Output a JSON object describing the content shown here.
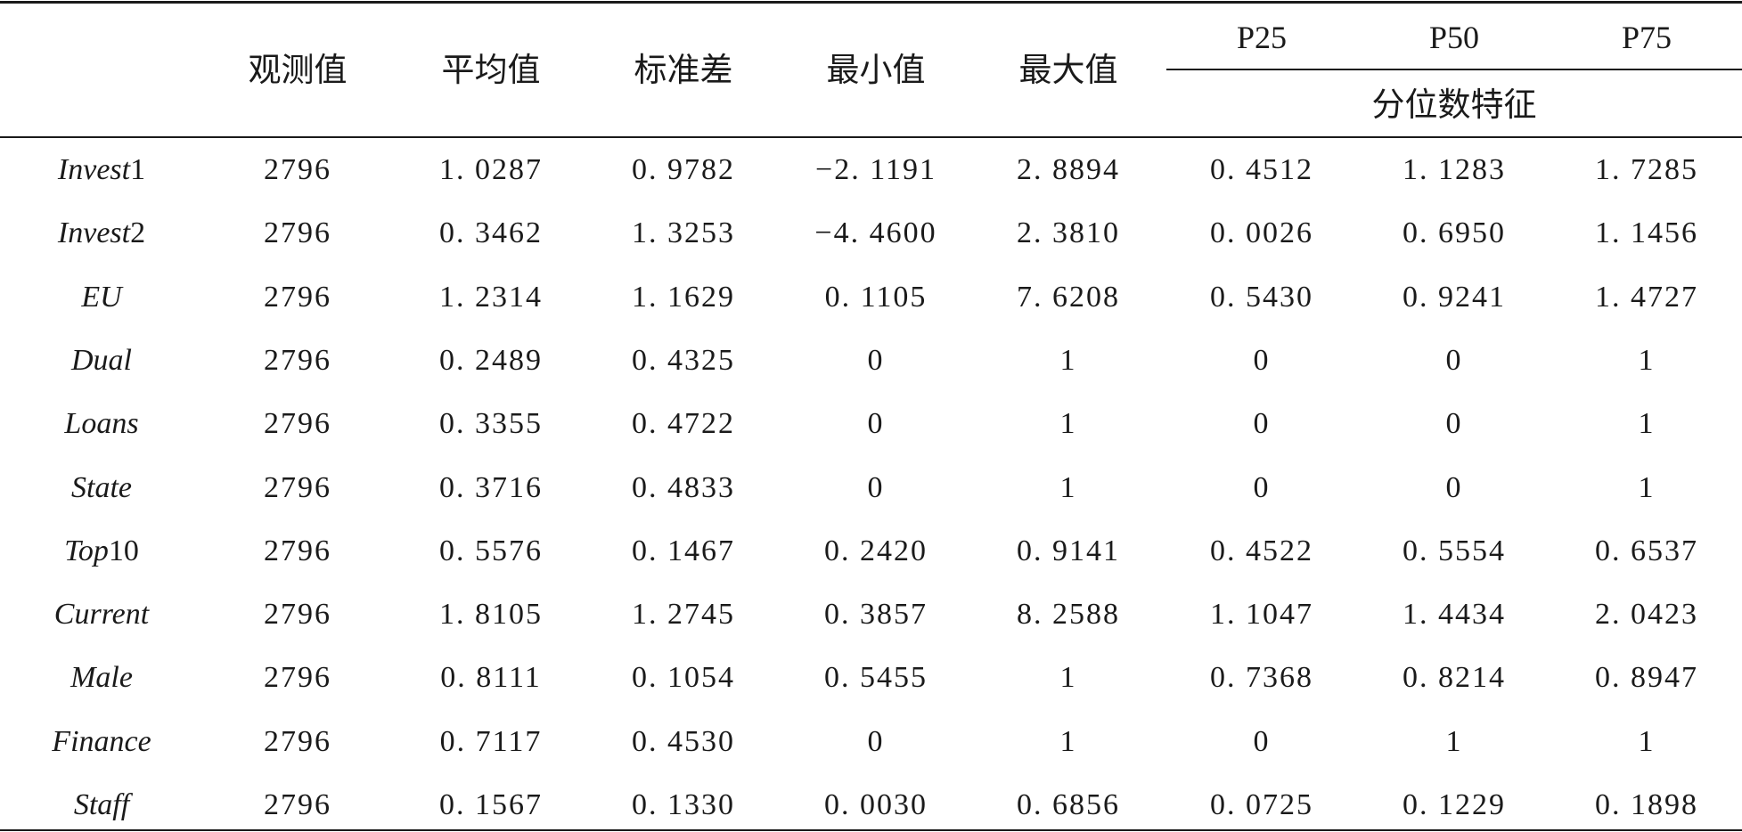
{
  "header": {
    "columns": [
      "观测值",
      "平均值",
      "标准差",
      "最小值",
      "最大值"
    ],
    "percentile_columns": [
      "P25",
      "P50",
      "P75"
    ],
    "percentile_group_label": "分位数特征"
  },
  "rows": [
    {
      "var": "Invest",
      "suffix": "1",
      "values": [
        "2796",
        "1. 0287",
        "0. 9782",
        "−2. 1191",
        "2. 8894",
        "0. 4512",
        "1. 1283",
        "1. 7285"
      ]
    },
    {
      "var": "Invest",
      "suffix": "2",
      "values": [
        "2796",
        "0. 3462",
        "1. 3253",
        "−4. 4600",
        "2. 3810",
        "0. 0026",
        "0. 6950",
        "1. 1456"
      ]
    },
    {
      "var": "EU",
      "suffix": "",
      "values": [
        "2796",
        "1. 2314",
        "1. 1629",
        "0. 1105",
        "7. 6208",
        "0. 5430",
        "0. 9241",
        "1. 4727"
      ]
    },
    {
      "var": "Dual",
      "suffix": "",
      "values": [
        "2796",
        "0. 2489",
        "0. 4325",
        "0",
        "1",
        "0",
        "0",
        "1"
      ]
    },
    {
      "var": "Loans",
      "suffix": "",
      "values": [
        "2796",
        "0. 3355",
        "0. 4722",
        "0",
        "1",
        "0",
        "0",
        "1"
      ]
    },
    {
      "var": "State",
      "suffix": "",
      "values": [
        "2796",
        "0. 3716",
        "0. 4833",
        "0",
        "1",
        "0",
        "0",
        "1"
      ]
    },
    {
      "var": "Top",
      "suffix": "10",
      "values": [
        "2796",
        "0. 5576",
        "0. 1467",
        "0. 2420",
        "0. 9141",
        "0. 4522",
        "0. 5554",
        "0. 6537"
      ]
    },
    {
      "var": "Current",
      "suffix": "",
      "values": [
        "2796",
        "1. 8105",
        "1. 2745",
        "0. 3857",
        "8. 2588",
        "1. 1047",
        "1. 4434",
        "2. 0423"
      ]
    },
    {
      "var": "Male",
      "suffix": "",
      "values": [
        "2796",
        "0. 8111",
        "0. 1054",
        "0. 5455",
        "1",
        "0. 7368",
        "0. 8214",
        "0. 8947"
      ]
    },
    {
      "var": "Finance",
      "suffix": "",
      "values": [
        "2796",
        "0. 7117",
        "0. 4530",
        "0",
        "1",
        "0",
        "1",
        "1"
      ]
    },
    {
      "var": "Staff",
      "suffix": "",
      "values": [
        "2796",
        "0. 1567",
        "0. 1330",
        "0. 0030",
        "0. 6856",
        "0. 0725",
        "0. 1229",
        "0. 1898"
      ]
    }
  ]
}
